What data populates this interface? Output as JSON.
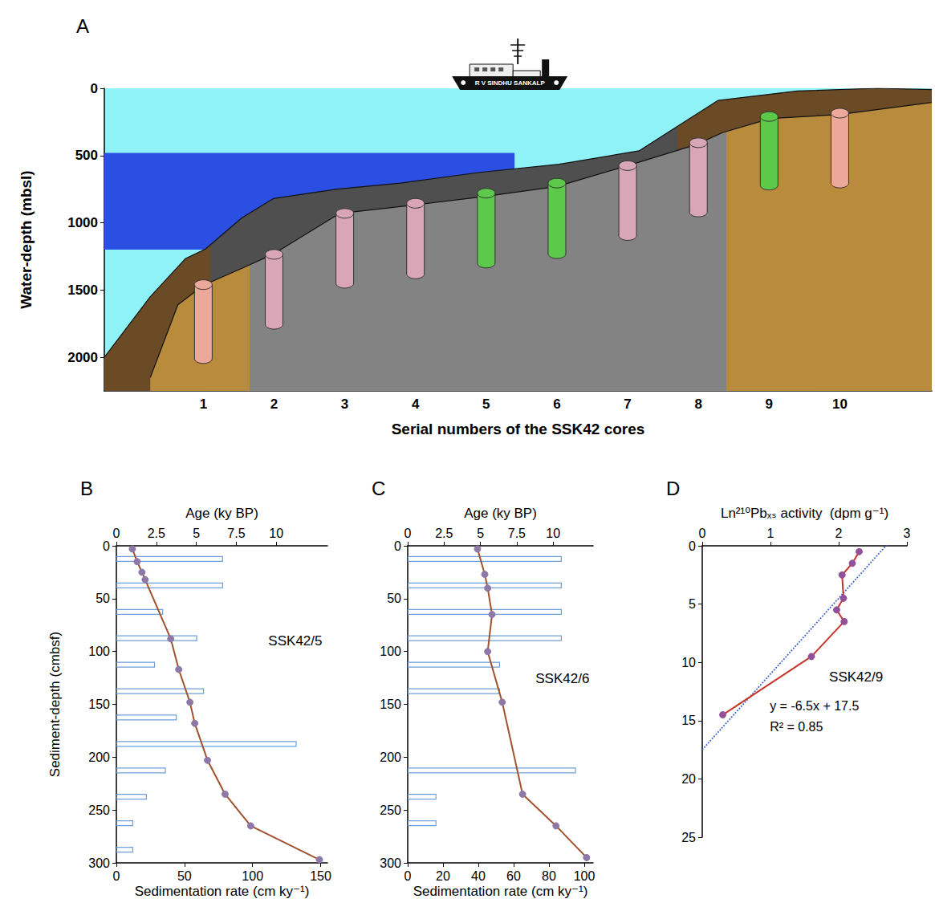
{
  "chart_data": [
    {
      "panel": "A",
      "type": "cross_section",
      "ship": "R V SINDHU SANKALP",
      "x_label": "Serial numbers of the SSK42 cores",
      "y_label": "Water-depth (mbsl)",
      "xlim": [
        -0.4,
        11.3
      ],
      "xticks": [
        1,
        2,
        3,
        4,
        5,
        6,
        7,
        8,
        9,
        10
      ],
      "ylim": [
        0,
        2250
      ],
      "yticks": [
        0,
        500,
        1000,
        1500,
        2000
      ],
      "color": "#8ef2f6",
      "band": {
        "x": [
          -0.4,
          5.4
        ],
        "depth": [
          480,
          1200
        ],
        "color": "#2b4fe3"
      },
      "layers": [
        {
          "x": [
            -0.4,
            0.25,
            0.75,
            1.03,
            1.54,
            1.99,
            2.89,
            3.79,
            4.91,
            6.03,
            7.16,
            7.83,
            8.28,
            9.4,
            10.53,
            11.3
          ],
          "depth": [
            2000,
            1550,
            1265,
            1195,
            965,
            820,
            750,
            705,
            625,
            565,
            465,
            240,
            90,
            20,
            0,
            10
          ],
          "colors": [
            "#6b4a26",
            "#4f4f4f",
            "#6b4a26"
          ],
          "breaks": [
            1.1,
            7.7
          ]
        },
        {
          "x": [
            0.25,
            0.64,
            1.0,
            1.54,
            2.0,
            2.93,
            3.94,
            4.97,
            6.0,
            7.0,
            7.96,
            8.34,
            9.02,
            10.0,
            11.3
          ],
          "depth": [
            2150,
            1610,
            1465,
            1340,
            1230,
            930,
            870,
            805,
            730,
            575,
            420,
            330,
            225,
            195,
            105
          ],
          "colors": [
            "#b88c3c",
            "#838383",
            "#b88c3c"
          ],
          "breaks": [
            1.65,
            8.4
          ]
        }
      ],
      "cores": {
        "serial": [
          1,
          2,
          3,
          4,
          5,
          6,
          7,
          8,
          9,
          10
        ],
        "top": [
          1460,
          1235,
          930,
          855,
          780,
          705,
          575,
          405,
          210,
          185
        ],
        "bottom": [
          2010,
          1755,
          1450,
          1380,
          1300,
          1230,
          1095,
          920,
          720,
          705
        ],
        "colors": [
          "#eca89a",
          "#d9a6b8",
          "#d9a6b8",
          "#d9a6b8",
          "#5cc94a",
          "#5cc94a",
          "#d9a6b8",
          "#d9a6b8",
          "#5cc94a",
          "#eca89a"
        ]
      }
    },
    {
      "panel": "B",
      "type": "line",
      "label": "SSK42/5",
      "y_label": "Sediment-depth (cmbsf)",
      "ylim": [
        0,
        300
      ],
      "yticks": [
        0,
        50,
        100,
        150,
        200,
        250,
        300
      ],
      "x_label": "Age (ky BP)",
      "xlim": [
        0,
        13.2
      ],
      "xticks": [
        0,
        2.5,
        5,
        7.5,
        10
      ],
      "x2_label": "Sedimentation rate (cm ky⁻¹)",
      "x2lim": [
        0,
        155
      ],
      "x2ticks": [
        0,
        50,
        100,
        150
      ],
      "series": [
        {
          "type": "bar",
          "orientation": "horizontal",
          "axis": "x2",
          "color": "#6f9fd8",
          "x": [
            78,
            78,
            34,
            59,
            28,
            64,
            44,
            132,
            36,
            22,
            12,
            12
          ],
          "y": [
            12.5,
            37.5,
            62.5,
            87.5,
            112.5,
            137.5,
            162.5,
            187.5,
            212.5,
            237.5,
            262.5,
            287.5
          ]
        },
        {
          "type": "line",
          "axis": "x",
          "color": "#a0522d",
          "marker": "circle",
          "line_style": "solid",
          "x": [
            1.0,
            1.3,
            1.6,
            1.8,
            3.4,
            3.9,
            4.6,
            4.9,
            5.7,
            6.8,
            8.4,
            12.7
          ],
          "y": [
            3,
            15,
            25,
            32,
            88,
            117,
            148,
            168,
            203,
            235,
            265,
            297
          ]
        }
      ]
    },
    {
      "panel": "C",
      "type": "line",
      "label": "SSK42/6",
      "ylim": [
        0,
        300
      ],
      "yticks": [
        0,
        50,
        100,
        150,
        200,
        250,
        300
      ],
      "x_label": "Age (ky BP)",
      "xlim": [
        0,
        12.75
      ],
      "xticks": [
        0,
        2.5,
        5,
        7.5,
        10
      ],
      "x2_label": "Sedimentation rate (cm ky⁻¹)",
      "x2lim": [
        0,
        105
      ],
      "x2ticks": [
        0,
        20,
        40,
        60,
        80,
        100
      ],
      "series": [
        {
          "type": "bar",
          "orientation": "horizontal",
          "axis": "x2",
          "color": "#6f9fd8",
          "x": [
            87,
            87,
            87,
            87,
            52,
            52,
            95,
            16,
            16
          ],
          "y": [
            12.5,
            37.5,
            62.5,
            87.5,
            112.5,
            137.5,
            212.5,
            237.5,
            262.5
          ]
        },
        {
          "type": "line",
          "axis": "x",
          "color": "#a0522d",
          "marker": "circle",
          "line_style": "solid",
          "x": [
            4.8,
            5.3,
            5.5,
            5.8,
            5.5,
            6.5,
            7.9,
            10.2,
            12.3
          ],
          "y": [
            3,
            27,
            40,
            65,
            100,
            148,
            235,
            265,
            295
          ]
        }
      ]
    },
    {
      "panel": "D",
      "type": "line",
      "label": "SSK42/9",
      "ylim": [
        0,
        25
      ],
      "yticks": [
        0,
        5,
        10,
        15,
        20,
        25
      ],
      "x_label": "Ln²¹⁰Pbₓₛ activity  (dpm g⁻¹)",
      "xlim": [
        0,
        3
      ],
      "xticks": [
        0,
        1,
        2,
        3
      ],
      "series": [
        {
          "type": "line",
          "axis": "x",
          "color": "#c8342a",
          "marker": "circle",
          "line_style": "solid",
          "x": [
            2.3,
            2.2,
            2.05,
            2.07,
            1.97,
            2.08,
            1.6,
            0.3
          ],
          "y": [
            0.5,
            1.5,
            2.5,
            4.5,
            5.5,
            6.5,
            9.5,
            14.5
          ]
        }
      ],
      "fit": {
        "slope": -6.5,
        "intercept": 17.5,
        "equation": "y = -6.5x + 17.5",
        "r2_label": "R² = 0.85",
        "color": "#3a5fcd",
        "line_style": "dotted"
      }
    }
  ]
}
